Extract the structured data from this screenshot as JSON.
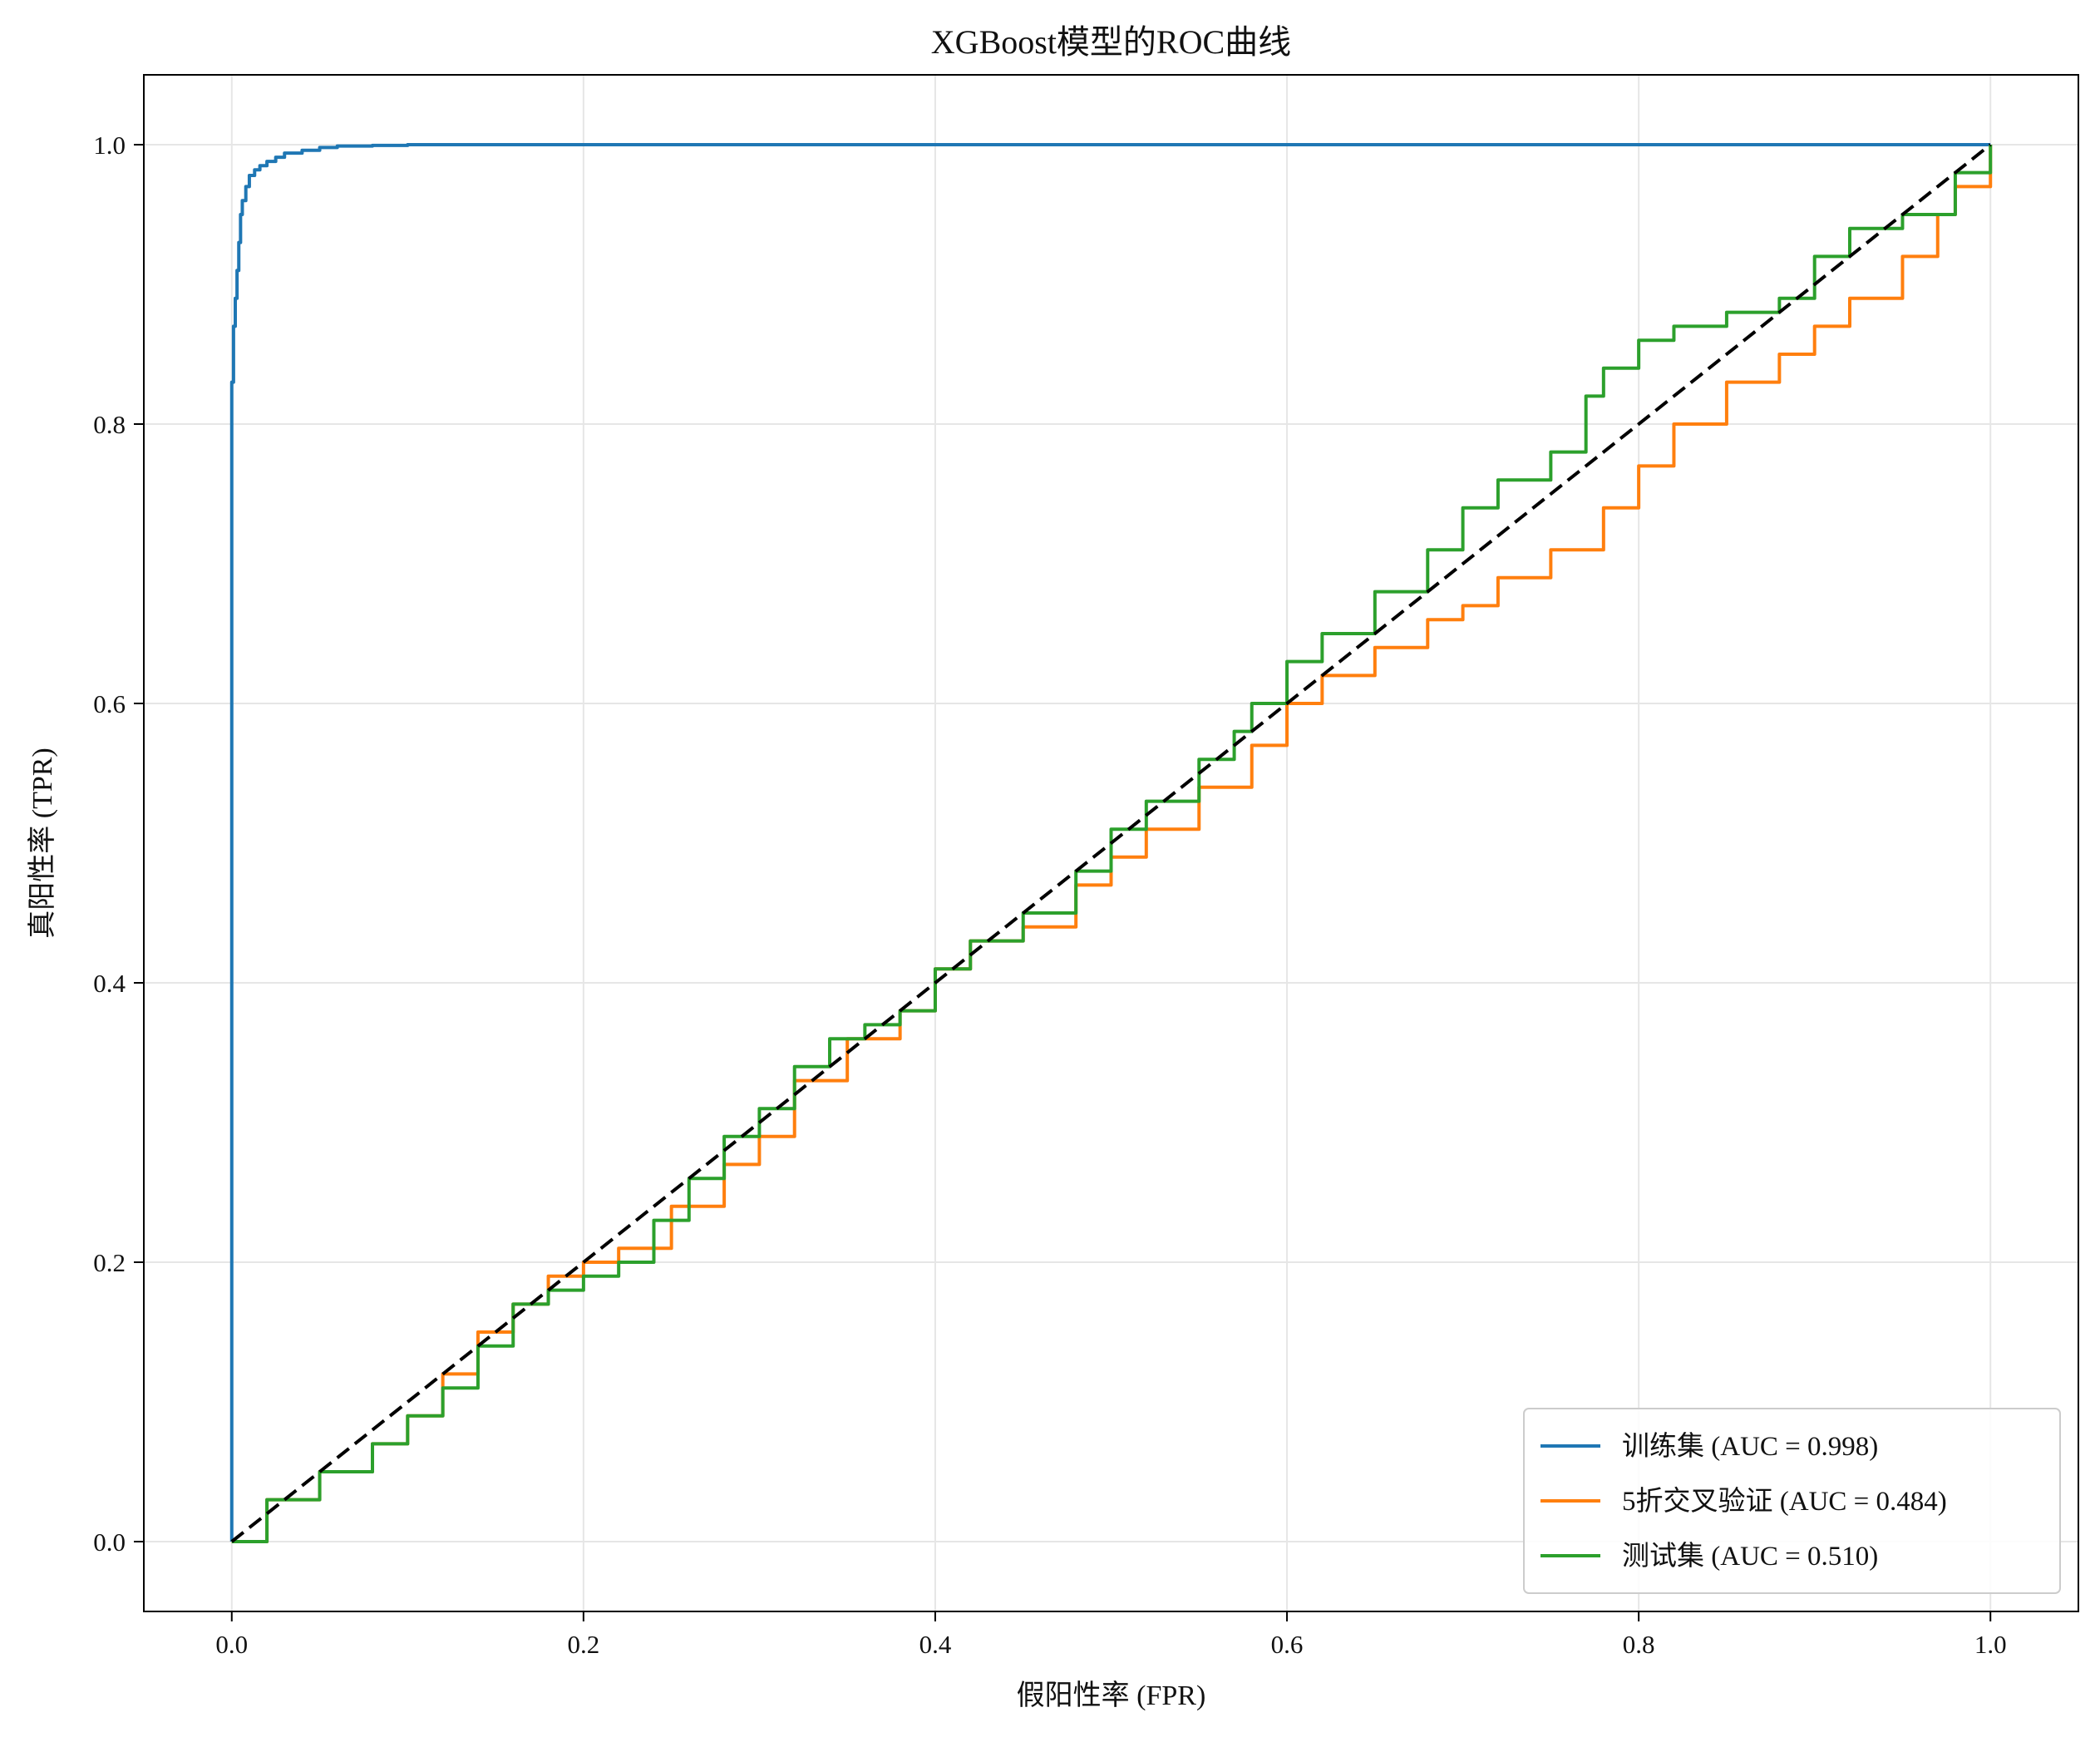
{
  "chart_data": {
    "type": "line",
    "title": "XGBoost模型的ROC曲线",
    "xlabel": "假阳性率 (FPR)",
    "ylabel": "真阳性率 (TPR)",
    "xlim": [
      -0.05,
      1.05
    ],
    "ylim": [
      -0.05,
      1.05
    ],
    "xticks": [
      "0.0",
      "0.2",
      "0.4",
      "0.6",
      "0.8",
      "1.0"
    ],
    "yticks": [
      "0.0",
      "0.2",
      "0.4",
      "0.6",
      "0.8",
      "1.0"
    ],
    "grid": true,
    "legend_position": "lower right",
    "series": [
      {
        "name": "训练集 (AUC = 0.998)",
        "color": "#1f77b4",
        "x": [
          0,
          0,
          0.001,
          0.002,
          0.003,
          0.004,
          0.005,
          0.006,
          0.008,
          0.01,
          0.013,
          0.016,
          0.02,
          0.025,
          0.03,
          0.04,
          0.05,
          0.06,
          0.08,
          0.1,
          0.12,
          1.0
        ],
        "y": [
          0,
          0.83,
          0.87,
          0.89,
          0.91,
          0.93,
          0.95,
          0.96,
          0.97,
          0.978,
          0.982,
          0.985,
          0.988,
          0.991,
          0.994,
          0.996,
          0.998,
          0.999,
          0.9995,
          1.0,
          1.0,
          1.0
        ]
      },
      {
        "name": "5折交叉验证 (AUC = 0.484)",
        "color": "#ff7f0e",
        "x": [
          0,
          0.02,
          0.05,
          0.08,
          0.1,
          0.12,
          0.14,
          0.16,
          0.18,
          0.2,
          0.22,
          0.25,
          0.28,
          0.3,
          0.32,
          0.35,
          0.38,
          0.4,
          0.42,
          0.45,
          0.48,
          0.5,
          0.52,
          0.55,
          0.58,
          0.6,
          0.62,
          0.65,
          0.68,
          0.7,
          0.72,
          0.75,
          0.78,
          0.8,
          0.82,
          0.85,
          0.88,
          0.9,
          0.92,
          0.95,
          0.97,
          0.98,
          1.0
        ],
        "y": [
          0,
          0.03,
          0.05,
          0.07,
          0.09,
          0.12,
          0.15,
          0.17,
          0.19,
          0.2,
          0.21,
          0.24,
          0.27,
          0.29,
          0.33,
          0.36,
          0.38,
          0.41,
          0.43,
          0.44,
          0.47,
          0.49,
          0.51,
          0.54,
          0.57,
          0.6,
          0.62,
          0.64,
          0.66,
          0.67,
          0.69,
          0.71,
          0.74,
          0.77,
          0.8,
          0.83,
          0.85,
          0.87,
          0.89,
          0.92,
          0.95,
          0.97,
          1.0
        ]
      },
      {
        "name": "测试集 (AUC = 0.510)",
        "color": "#2ca02c",
        "x": [
          0,
          0.02,
          0.05,
          0.08,
          0.1,
          0.12,
          0.14,
          0.16,
          0.18,
          0.2,
          0.22,
          0.24,
          0.26,
          0.28,
          0.3,
          0.32,
          0.34,
          0.36,
          0.38,
          0.4,
          0.42,
          0.45,
          0.48,
          0.5,
          0.52,
          0.55,
          0.57,
          0.58,
          0.6,
          0.62,
          0.65,
          0.68,
          0.7,
          0.72,
          0.75,
          0.77,
          0.78,
          0.8,
          0.82,
          0.85,
          0.88,
          0.9,
          0.92,
          0.95,
          0.98,
          1.0
        ],
        "y": [
          0,
          0.03,
          0.05,
          0.07,
          0.09,
          0.11,
          0.14,
          0.17,
          0.18,
          0.19,
          0.2,
          0.23,
          0.26,
          0.29,
          0.31,
          0.34,
          0.36,
          0.37,
          0.38,
          0.41,
          0.43,
          0.45,
          0.48,
          0.51,
          0.53,
          0.56,
          0.58,
          0.6,
          0.63,
          0.65,
          0.68,
          0.71,
          0.74,
          0.76,
          0.78,
          0.82,
          0.84,
          0.86,
          0.87,
          0.88,
          0.89,
          0.92,
          0.94,
          0.95,
          0.98,
          1.0
        ]
      },
      {
        "name": "",
        "color": "#000000",
        "dashed": true,
        "x": [
          0,
          1
        ],
        "y": [
          0,
          1
        ]
      }
    ]
  }
}
